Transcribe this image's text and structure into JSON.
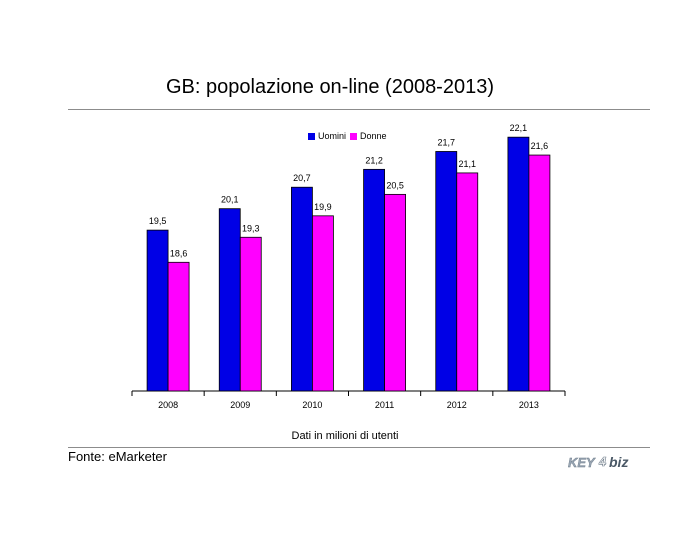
{
  "page": {
    "title": "GB: popolazione on-line (2008-2013)",
    "note": "Dati in milioni di utenti",
    "source": "Fonte: eMarketer",
    "logo_text": "KEY4biz"
  },
  "colors": {
    "series_men": "#0000e6",
    "series_women": "#ff00ff",
    "rule": "#8c8c8c"
  },
  "chart_data": {
    "type": "bar",
    "title": "GB: popolazione on-line (2008-2013)",
    "xlabel": "Dati in milioni di utenti",
    "ylabel": "",
    "ylim": [
      15,
      23
    ],
    "grid": false,
    "legend_position": "top",
    "categories": [
      "2008",
      "2009",
      "2010",
      "2011",
      "2012",
      "2013"
    ],
    "series": [
      {
        "name": "Uomini",
        "values": [
          19.5,
          20.1,
          20.7,
          21.2,
          21.7,
          22.1
        ],
        "labels": [
          "19,5",
          "20,1",
          "20,7",
          "21,2",
          "21,7",
          "22,1"
        ]
      },
      {
        "name": "Donne",
        "values": [
          18.6,
          19.3,
          19.9,
          20.5,
          21.1,
          21.6
        ],
        "labels": [
          "18,6",
          "19,3",
          "19,9",
          "20,5",
          "21,1",
          "21,6"
        ]
      }
    ]
  }
}
